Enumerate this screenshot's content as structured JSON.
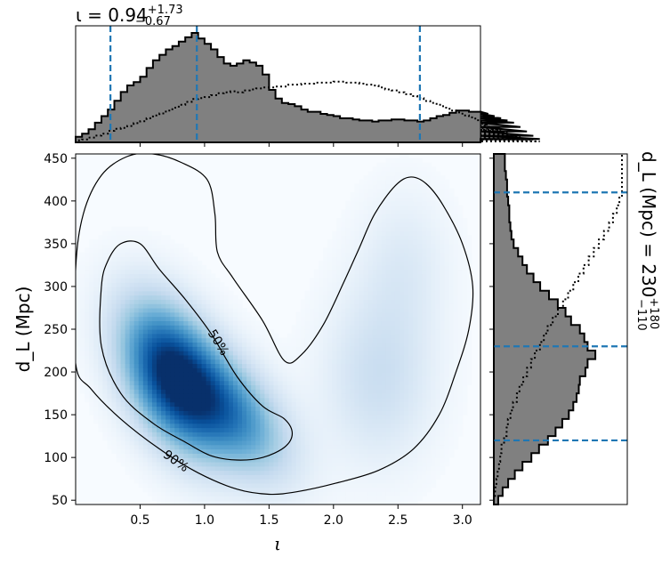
{
  "chart_data": [
    {
      "type": "heatmap",
      "panel": "joint",
      "xlabel": "ι",
      "ylabel": "d_L (Mpc)",
      "xlim": [
        0.0,
        3.14
      ],
      "ylim": [
        45,
        455
      ],
      "xticks": [
        0.5,
        1.0,
        1.5,
        2.0,
        2.5,
        3.0
      ],
      "xtick_labels": [
        "0.5",
        "1.0",
        "1.5",
        "2.0",
        "2.5",
        "3.0"
      ],
      "yticks": [
        50,
        100,
        150,
        200,
        250,
        300,
        350,
        400,
        450
      ],
      "ytick_labels": [
        "50",
        "100",
        "150",
        "200",
        "250",
        "300",
        "350",
        "400",
        "450"
      ],
      "colormap": "Blues",
      "density_peaks": [
        {
          "x": 0.75,
          "y": 195,
          "weight": 1.0
        },
        {
          "x": 1.25,
          "y": 150,
          "weight": 0.55
        },
        {
          "x": 2.35,
          "y": 195,
          "weight": 0.22
        },
        {
          "x": 2.55,
          "y": 330,
          "weight": 0.12
        }
      ],
      "contours": [
        {
          "label": "50%",
          "points": [
            [
              0.2,
              300
            ],
            [
              0.25,
              330
            ],
            [
              0.35,
              350
            ],
            [
              0.5,
              350
            ],
            [
              0.65,
              320
            ],
            [
              0.85,
              285
            ],
            [
              1.05,
              245
            ],
            [
              1.25,
              195
            ],
            [
              1.45,
              160
            ],
            [
              1.62,
              145
            ],
            [
              1.68,
              128
            ],
            [
              1.62,
              112
            ],
            [
              1.45,
              100
            ],
            [
              1.25,
              97
            ],
            [
              1.05,
              102
            ],
            [
              0.85,
              118
            ],
            [
              0.6,
              140
            ],
            [
              0.35,
              175
            ],
            [
              0.2,
              230
            ],
            [
              0.2,
              300
            ]
          ]
        },
        {
          "label": "90%",
          "points": [
            [
              0.0,
              210
            ],
            [
              0.0,
              320
            ],
            [
              0.06,
              385
            ],
            [
              0.2,
              430
            ],
            [
              0.4,
              452
            ],
            [
              0.6,
              455
            ],
            [
              0.82,
              445
            ],
            [
              1.02,
              425
            ],
            [
              1.08,
              385
            ],
            [
              1.1,
              340
            ],
            [
              1.22,
              310
            ],
            [
              1.45,
              260
            ],
            [
              1.62,
              213
            ],
            [
              1.75,
              220
            ],
            [
              1.92,
              255
            ],
            [
              2.08,
              305
            ],
            [
              2.2,
              345
            ],
            [
              2.32,
              385
            ],
            [
              2.48,
              418
            ],
            [
              2.6,
              428
            ],
            [
              2.72,
              420
            ],
            [
              2.85,
              395
            ],
            [
              3.0,
              350
            ],
            [
              3.08,
              300
            ],
            [
              3.05,
              250
            ],
            [
              2.95,
              200
            ],
            [
              2.82,
              150
            ],
            [
              2.62,
              110
            ],
            [
              2.35,
              85
            ],
            [
              2.02,
              70
            ],
            [
              1.72,
              60
            ],
            [
              1.5,
              57
            ],
            [
              1.25,
              63
            ],
            [
              0.95,
              82
            ],
            [
              0.65,
              110
            ],
            [
              0.35,
              145
            ],
            [
              0.12,
              180
            ],
            [
              0.0,
              210
            ]
          ]
        }
      ],
      "contour_labels": [
        "50%",
        "90%"
      ]
    },
    {
      "type": "histogram",
      "panel": "top-marginal",
      "title": "ι = 0.94",
      "title_super": "+1.73",
      "title_sub": "−0.67",
      "xlim": [
        0.0,
        3.14
      ],
      "bin_width": 0.05,
      "bins_start": 0.0,
      "posterior": [
        0.05,
        0.08,
        0.12,
        0.18,
        0.24,
        0.3,
        0.38,
        0.46,
        0.52,
        0.55,
        0.6,
        0.68,
        0.75,
        0.8,
        0.85,
        0.88,
        0.92,
        0.96,
        1.0,
        0.95,
        0.9,
        0.85,
        0.78,
        0.72,
        0.7,
        0.72,
        0.75,
        0.73,
        0.7,
        0.62,
        0.48,
        0.4,
        0.36,
        0.35,
        0.33,
        0.3,
        0.28,
        0.28,
        0.26,
        0.25,
        0.24,
        0.22,
        0.22,
        0.21,
        0.2,
        0.2,
        0.19,
        0.2,
        0.2,
        0.21,
        0.21,
        0.2,
        0.2,
        0.19,
        0.2,
        0.22,
        0.24,
        0.25,
        0.27,
        0.29,
        0.29,
        0.28,
        0.28,
        0.28,
        0.26,
        0.24,
        0.22,
        0.2,
        0.18,
        0.14,
        0.1,
        0.06,
        0.03
      ],
      "prior": [
        0.02,
        0.03,
        0.05,
        0.07,
        0.09,
        0.12,
        0.14,
        0.15,
        0.17,
        0.2,
        0.22,
        0.25,
        0.28,
        0.3,
        0.33,
        0.36,
        0.39,
        0.42,
        0.45,
        0.46,
        0.47,
        0.49,
        0.51,
        0.52,
        0.53,
        0.52,
        0.54,
        0.55,
        0.56,
        0.57,
        0.57,
        0.58,
        0.58,
        0.6,
        0.6,
        0.61,
        0.61,
        0.62,
        0.62,
        0.62,
        0.63,
        0.63,
        0.62,
        0.62,
        0.61,
        0.6,
        0.59,
        0.57,
        0.55,
        0.54,
        0.52,
        0.5,
        0.48,
        0.46,
        0.43,
        0.41,
        0.39,
        0.36,
        0.33,
        0.31,
        0.28,
        0.26,
        0.23,
        0.2,
        0.18,
        0.15,
        0.13,
        0.1,
        0.08,
        0.06,
        0.04,
        0.03,
        0.01
      ],
      "quantile_lines": [
        0.27,
        0.94,
        2.67
      ]
    },
    {
      "type": "histogram",
      "panel": "right-marginal",
      "title": "d_L (Mpc) = 230",
      "title_super": "+180",
      "title_sub": "−110",
      "ylim": [
        45,
        455
      ],
      "bin_width": 10,
      "bins_start": 45,
      "posterior": [
        0.04,
        0.08,
        0.13,
        0.19,
        0.26,
        0.34,
        0.41,
        0.49,
        0.56,
        0.62,
        0.68,
        0.72,
        0.75,
        0.77,
        0.78,
        0.83,
        0.85,
        0.92,
        0.85,
        0.82,
        0.78,
        0.7,
        0.65,
        0.58,
        0.5,
        0.42,
        0.36,
        0.3,
        0.26,
        0.22,
        0.18,
        0.16,
        0.15,
        0.14,
        0.14,
        0.13,
        0.12,
        0.12,
        0.11,
        0.1,
        0.1
      ],
      "prior": [
        0.0,
        0.01,
        0.02,
        0.03,
        0.04,
        0.05,
        0.06,
        0.08,
        0.1,
        0.11,
        0.13,
        0.15,
        0.18,
        0.2,
        0.23,
        0.26,
        0.29,
        0.32,
        0.36,
        0.39,
        0.42,
        0.46,
        0.5,
        0.54,
        0.58,
        0.62,
        0.66,
        0.7,
        0.74,
        0.78,
        0.82,
        0.86,
        0.9,
        0.93,
        0.96,
        0.98,
        1.0,
        1.0,
        1.0,
        1.0,
        1.0
      ],
      "quantile_lines": [
        120,
        230,
        410
      ]
    }
  ]
}
